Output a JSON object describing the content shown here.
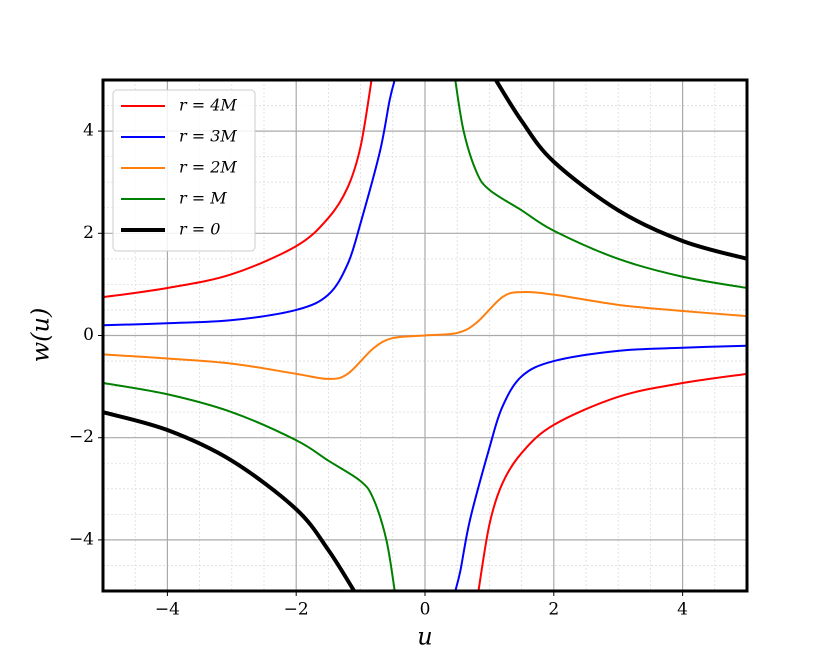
{
  "chart_data": {
    "type": "line",
    "xlabel": "u",
    "ylabel": "w(u)",
    "xlim": [
      -5,
      5
    ],
    "ylim": [
      -5,
      5
    ],
    "xticks": [
      {
        "value": -4,
        "label": "−4"
      },
      {
        "value": -2,
        "label": "−2"
      },
      0,
      2,
      4
    ],
    "yticks": [
      {
        "value": -4,
        "label": "−4"
      },
      {
        "value": -2,
        "label": "−2"
      },
      0,
      2,
      4
    ],
    "grid": true,
    "legend": "upper-left",
    "series": [
      {
        "name": "r = 4M",
        "color": "#ff0000",
        "width": 2,
        "x": [
          -5,
          -4,
          -3,
          -2,
          -1.5,
          -1.2,
          -1,
          -0.83,
          0,
          0.83,
          1,
          1.2,
          1.5,
          2,
          3,
          4,
          5
        ],
        "values": [
          0.75,
          0.93,
          1.2,
          1.75,
          2.3,
          2.9,
          3.7,
          5,
          null,
          -5,
          -3.7,
          -2.9,
          -2.3,
          -1.75,
          -1.2,
          -0.93,
          -0.75
        ]
      },
      {
        "name": "r = 3M",
        "color": "#0000ff",
        "width": 2,
        "x": [
          -5,
          -4,
          -3,
          -2,
          -1.5,
          -1.2,
          -1,
          -0.7,
          -0.55,
          -0.47,
          0,
          0.47,
          0.55,
          0.7,
          1,
          1.2,
          1.5,
          2,
          3,
          4,
          5
        ],
        "values": [
          0.2,
          0.24,
          0.3,
          0.5,
          0.8,
          1.4,
          2.2,
          3.6,
          4.6,
          5,
          null,
          -5,
          -4.6,
          -3.6,
          -2.2,
          -1.4,
          -0.8,
          -0.5,
          -0.3,
          -0.24,
          -0.2
        ]
      },
      {
        "name": "r = 2M",
        "color": "#ff7f0e",
        "width": 2,
        "x": [
          -5,
          -4,
          -3,
          -2,
          -1.5,
          -1.2,
          -0.8,
          -0.5,
          0,
          0.5,
          0.8,
          1.2,
          1.5,
          2,
          3,
          4,
          5
        ],
        "values": [
          -0.37,
          -0.45,
          -0.55,
          -0.75,
          -0.85,
          -0.75,
          -0.25,
          -0.05,
          0,
          0.05,
          0.25,
          0.75,
          0.85,
          0.8,
          0.6,
          0.48,
          0.38
        ]
      },
      {
        "name": "r = M",
        "color": "#008000",
        "width": 2,
        "x": [
          -5,
          -4,
          -3,
          -2,
          -1.5,
          -1,
          -0.8,
          -0.6,
          -0.47,
          0,
          0.47,
          0.6,
          0.8,
          1,
          1.5,
          2,
          3,
          4,
          5
        ],
        "values": [
          -0.93,
          -1.15,
          -1.5,
          -2.05,
          -2.45,
          -2.85,
          -3.2,
          -4,
          -5,
          null,
          5,
          4,
          3.2,
          2.85,
          2.45,
          2.05,
          1.5,
          1.15,
          0.93
        ]
      },
      {
        "name": "r = 0",
        "color": "#000000",
        "width": 4,
        "x": [
          -5,
          -4,
          -3,
          -2,
          -1.5,
          -1.1,
          0,
          1.1,
          1.5,
          2,
          3,
          4,
          5
        ],
        "values": [
          -1.5,
          -1.85,
          -2.45,
          -3.4,
          -4.2,
          -5,
          null,
          5,
          4.2,
          3.4,
          2.45,
          1.85,
          1.5
        ]
      }
    ]
  }
}
